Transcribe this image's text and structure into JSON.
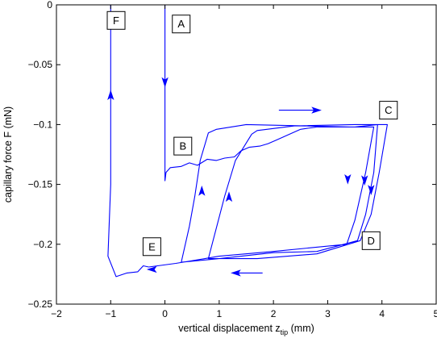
{
  "chart_data": {
    "type": "line",
    "xlabel": "vertical displacement z",
    "xlabel_sub": "tip",
    "xlabel_unit": " (mm)",
    "ylabel": "capillary force F (mN)",
    "xlim": [
      -2,
      5
    ],
    "ylim": [
      -0.25,
      0
    ],
    "xticks": [
      -2,
      -1,
      0,
      1,
      2,
      3,
      4,
      5
    ],
    "xtick_labels": [
      "−2",
      "−1",
      "0",
      "1",
      "2",
      "3",
      "4",
      "5"
    ],
    "yticks": [
      -0.25,
      -0.2,
      -0.15,
      -0.1,
      -0.05,
      0
    ],
    "ytick_labels": [
      "−0.25",
      "−0.2",
      "−0.15",
      "−0.1",
      "−0.05",
      "0"
    ],
    "grid": false,
    "line_color": "#0000ff",
    "series": [
      {
        "values": [
          [
            0.0,
            0.0
          ],
          [
            0.0,
            -0.08
          ],
          [
            0.0,
            -0.147
          ],
          [
            0.02,
            -0.14
          ],
          [
            0.1,
            -0.136
          ],
          [
            0.3,
            -0.135
          ],
          [
            0.45,
            -0.132
          ],
          [
            0.6,
            -0.134
          ],
          [
            0.78,
            -0.129
          ],
          [
            0.95,
            -0.13
          ],
          [
            1.1,
            -0.128
          ],
          [
            1.28,
            -0.127
          ],
          [
            1.4,
            -0.122
          ],
          [
            1.55,
            -0.119
          ],
          [
            1.75,
            -0.118
          ],
          [
            1.9,
            -0.116
          ],
          [
            2.05,
            -0.113
          ],
          [
            2.3,
            -0.108
          ],
          [
            2.5,
            -0.104
          ],
          [
            2.8,
            -0.102
          ],
          [
            3.1,
            -0.102
          ],
          [
            3.5,
            -0.102
          ],
          [
            3.92,
            -0.1
          ],
          [
            3.85,
            -0.14
          ],
          [
            3.7,
            -0.175
          ],
          [
            3.55,
            -0.197
          ],
          [
            2.8,
            -0.206
          ],
          [
            2.0,
            -0.207
          ],
          [
            1.0,
            -0.212
          ],
          [
            0.3,
            -0.215
          ],
          [
            0.45,
            -0.185
          ],
          [
            0.55,
            -0.16
          ],
          [
            0.65,
            -0.13
          ],
          [
            0.8,
            -0.107
          ],
          [
            0.95,
            -0.104
          ],
          [
            1.5,
            -0.1
          ],
          [
            2.5,
            -0.101
          ],
          [
            3.5,
            -0.1
          ],
          [
            4.1,
            -0.1
          ],
          [
            3.95,
            -0.14
          ],
          [
            3.8,
            -0.175
          ],
          [
            3.6,
            -0.197
          ],
          [
            2.8,
            -0.208
          ],
          [
            1.7,
            -0.212
          ],
          [
            0.8,
            -0.212
          ],
          [
            1.1,
            -0.16
          ],
          [
            1.3,
            -0.13
          ],
          [
            1.6,
            -0.108
          ],
          [
            1.7,
            -0.105
          ],
          [
            2.4,
            -0.101
          ],
          [
            3.4,
            -0.102
          ],
          [
            3.85,
            -0.102
          ],
          [
            3.7,
            -0.14
          ],
          [
            3.5,
            -0.18
          ],
          [
            3.35,
            -0.2
          ],
          [
            2.0,
            -0.206
          ],
          [
            1.0,
            -0.21
          ],
          [
            0.2,
            -0.216
          ],
          [
            -0.3,
            -0.219
          ],
          [
            -0.4,
            -0.218
          ],
          [
            -0.5,
            -0.223
          ],
          [
            -0.7,
            -0.224
          ],
          [
            -0.9,
            -0.227
          ],
          [
            -1.05,
            -0.21
          ],
          [
            -1.0,
            -0.15
          ],
          [
            -1.0,
            -0.08
          ],
          [
            -1.0,
            -0.03
          ],
          [
            -1.0,
            0.0
          ]
        ]
      }
    ],
    "arrows": [
      {
        "x": 0.0,
        "y": -0.065,
        "dir": "down"
      },
      {
        "x": -1.0,
        "y": -0.075,
        "dir": "up"
      },
      {
        "x": -0.25,
        "y": -0.221,
        "dir": "left"
      },
      {
        "x": 0.68,
        "y": -0.155,
        "dir": "up"
      },
      {
        "x": 1.18,
        "y": -0.16,
        "dir": "up"
      },
      {
        "x": 3.37,
        "y": -0.146,
        "dir": "down"
      },
      {
        "x": 3.68,
        "y": -0.147,
        "dir": "down"
      },
      {
        "x": 3.8,
        "y": -0.155,
        "dir": "down"
      }
    ],
    "free_arrows": [
      {
        "x1": 2.1,
        "y1": -0.088,
        "x2": 2.8,
        "y2": -0.088
      },
      {
        "x1": 1.8,
        "y1": -0.224,
        "x2": 1.3,
        "y2": -0.224
      }
    ],
    "point_labels": [
      {
        "text": "F",
        "x": -0.9,
        "y": -0.013
      },
      {
        "text": "A",
        "x": 0.3,
        "y": -0.016
      },
      {
        "text": "B",
        "x": 0.33,
        "y": -0.118
      },
      {
        "text": "C",
        "x": 4.12,
        "y": -0.088
      },
      {
        "text": "D",
        "x": 3.8,
        "y": -0.197
      },
      {
        "text": "E",
        "x": -0.24,
        "y": -0.202
      }
    ]
  }
}
